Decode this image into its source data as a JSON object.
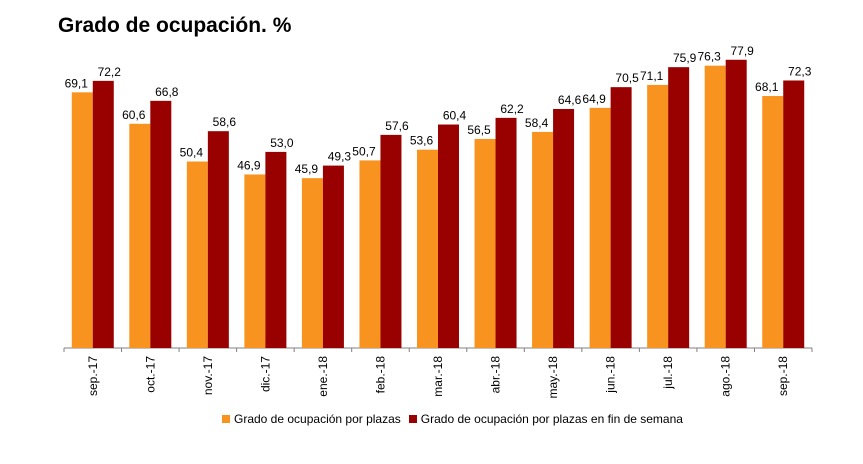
{
  "chart_data": {
    "type": "bar",
    "title": "Grado de ocupación. %",
    "categories": [
      "sep.-17",
      "oct.-17",
      "nov.-17",
      "dic.-17",
      "ene.-18",
      "feb.-18",
      "mar.-18",
      "abr.-18",
      "may.-18",
      "jun.-18",
      "jul.-18",
      "ago.-18",
      "sep.-18"
    ],
    "series": [
      {
        "name": "Grado de ocupación por plazas",
        "color": "#f7931e",
        "values": [
          69.1,
          60.6,
          50.4,
          46.9,
          45.9,
          50.7,
          53.6,
          56.5,
          58.4,
          64.9,
          71.1,
          76.3,
          68.1
        ],
        "labels": [
          "69,1",
          "60,6",
          "50,4",
          "46,9",
          "45,9",
          "50,7",
          "53,6",
          "56,5",
          "58,4",
          "64,9",
          "71,1",
          "76,3",
          "68,1"
        ]
      },
      {
        "name": "Grado de ocupación por plazas en fin de semana",
        "color": "#990000",
        "values": [
          72.2,
          66.8,
          58.6,
          53.0,
          49.3,
          57.6,
          60.4,
          62.2,
          64.6,
          70.5,
          75.9,
          77.9,
          72.3
        ],
        "labels": [
          "72,2",
          "66,8",
          "58,6",
          "53,0",
          "49,3",
          "57,6",
          "60,4",
          "62,2",
          "64,6",
          "70,5",
          "75,9",
          "77,9",
          "72,3"
        ]
      }
    ],
    "ylim": [
      0,
      80
    ],
    "legend": "bottom"
  }
}
